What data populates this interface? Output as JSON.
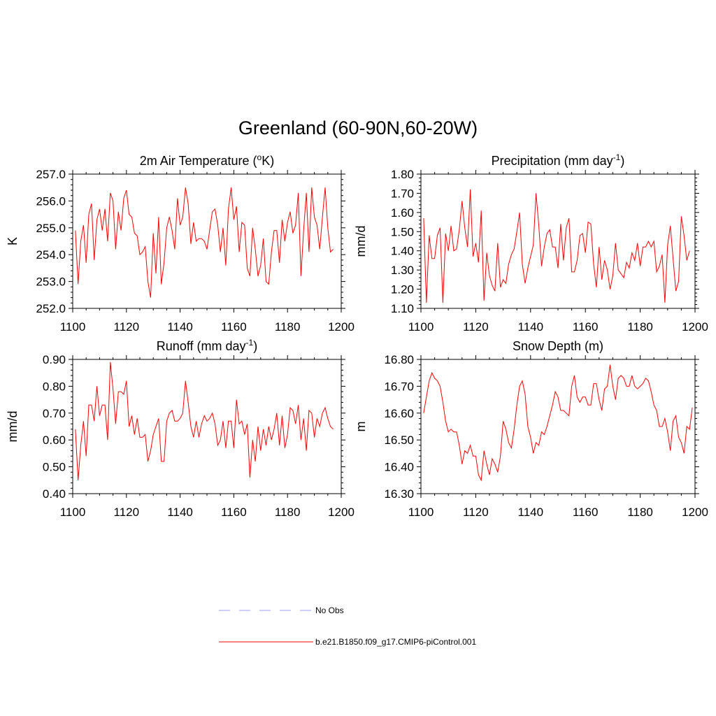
{
  "title": "Greenland (60-90N,60-20W)",
  "legend": {
    "obs_label": "No Obs",
    "obs_color": "#9999ff",
    "model_label": "b.e21.B1850.f09_g17.CMIP6-piControl.001",
    "model_color": "#ff0000"
  },
  "chart_data": [
    {
      "type": "line",
      "title": "2m Air Temperature (",
      "title_sup": "o",
      "title_suffix": "K)",
      "ylabel": "K",
      "xlim": [
        1100,
        1200
      ],
      "ylim": [
        252.0,
        257.0
      ],
      "xticks": [
        "1100",
        "1120",
        "1140",
        "1160",
        "1180",
        "1200"
      ],
      "yticks": [
        "252.0",
        "253.0",
        "254.0",
        "255.0",
        "256.0",
        "257.0"
      ],
      "x_start": 1101,
      "series": [
        {
          "name": "b.e21.B1850.f09_g17.CMIP6-piControl.001",
          "color": "#ff0000",
          "values": [
            254.9,
            252.9,
            254.5,
            255.1,
            253.7,
            255.5,
            255.9,
            253.8,
            255.3,
            255.7,
            254.9,
            255.7,
            254.5,
            256.3,
            256.0,
            254.2,
            255.6,
            254.9,
            256.1,
            256.4,
            255.5,
            255.4,
            254.8,
            254.7,
            254.0,
            254.1,
            254.3,
            253.0,
            252.4,
            254.8,
            253.3,
            255.4,
            252.9,
            253.7,
            255.0,
            255.4,
            254.9,
            254.2,
            256.1,
            255.1,
            255.4,
            256.5,
            255.9,
            254.4,
            255.2,
            254.5,
            254.6,
            254.6,
            254.5,
            254.2,
            254.9,
            255.6,
            255.7,
            255.1,
            254.1,
            255.0,
            253.6,
            255.7,
            256.5,
            255.3,
            255.8,
            254.1,
            255.2,
            255.1,
            253.5,
            253.2,
            255.0,
            254.2,
            253.2,
            253.6,
            254.6,
            253.0,
            252.9,
            254.1,
            254.9,
            254.9,
            253.7,
            255.3,
            254.5,
            255.2,
            255.6,
            254.8,
            255.1,
            256.3,
            253.2,
            254.9,
            256.3,
            254.1,
            256.5,
            255.4,
            255.1,
            254.2,
            255.4,
            256.5,
            255.0,
            254.1,
            254.2
          ]
        }
      ]
    },
    {
      "type": "line",
      "title": "Precipitation (mm day",
      "title_sup": "-1",
      "title_suffix": ")",
      "ylabel": "mm/d",
      "xlim": [
        1100,
        1200
      ],
      "ylim": [
        1.1,
        1.8
      ],
      "xticks": [
        "1100",
        "1120",
        "1140",
        "1160",
        "1180",
        "1200"
      ],
      "yticks": [
        "1.10",
        "1.20",
        "1.30",
        "1.40",
        "1.50",
        "1.60",
        "1.70",
        "1.80"
      ],
      "x_start": 1101,
      "series": [
        {
          "name": "b.e21.B1850.f09_g17.CMIP6-piControl.001",
          "color": "#ff0000",
          "values": [
            1.57,
            1.13,
            1.48,
            1.36,
            1.36,
            1.48,
            1.52,
            1.13,
            1.49,
            1.4,
            1.53,
            1.4,
            1.41,
            1.51,
            1.66,
            1.52,
            1.42,
            1.72,
            1.37,
            1.44,
            1.34,
            1.61,
            1.14,
            1.39,
            1.27,
            1.22,
            1.19,
            1.44,
            1.21,
            1.25,
            1.23,
            1.33,
            1.38,
            1.41,
            1.5,
            1.6,
            1.33,
            1.23,
            1.31,
            1.37,
            1.43,
            1.7,
            1.53,
            1.32,
            1.42,
            1.49,
            1.51,
            1.42,
            1.42,
            1.31,
            1.54,
            1.35,
            1.52,
            1.57,
            1.29,
            1.29,
            1.35,
            1.48,
            1.49,
            1.39,
            1.55,
            1.54,
            1.33,
            1.21,
            1.42,
            1.25,
            1.35,
            1.3,
            1.2,
            1.27,
            1.44,
            1.3,
            1.28,
            1.26,
            1.34,
            1.31,
            1.39,
            1.35,
            1.44,
            1.32,
            1.42,
            1.42,
            1.45,
            1.42,
            1.45,
            1.29,
            1.32,
            1.38,
            1.13,
            1.43,
            1.53,
            1.36,
            1.19,
            1.24,
            1.58,
            1.48,
            1.35,
            1.4
          ]
        }
      ]
    },
    {
      "type": "line",
      "title": "Runoff (mm day",
      "title_sup": "-1",
      "title_suffix": ")",
      "ylabel": "mm/d",
      "xlim": [
        1100,
        1200
      ],
      "ylim": [
        0.4,
        0.9
      ],
      "xticks": [
        "1100",
        "1120",
        "1140",
        "1160",
        "1180",
        "1200"
      ],
      "yticks": [
        "0.40",
        "0.50",
        "0.60",
        "0.70",
        "0.80",
        "0.90"
      ],
      "x_start": 1101,
      "series": [
        {
          "name": "b.e21.B1850.f09_g17.CMIP6-piControl.001",
          "color": "#ff0000",
          "values": [
            0.64,
            0.45,
            0.58,
            0.67,
            0.54,
            0.73,
            0.73,
            0.67,
            0.8,
            0.69,
            0.73,
            0.73,
            0.6,
            0.89,
            0.79,
            0.66,
            0.78,
            0.78,
            0.77,
            0.82,
            0.65,
            0.69,
            0.62,
            0.68,
            0.61,
            0.61,
            0.62,
            0.52,
            0.56,
            0.62,
            0.65,
            0.68,
            0.52,
            0.52,
            0.67,
            0.7,
            0.71,
            0.67,
            0.67,
            0.68,
            0.7,
            0.82,
            0.74,
            0.65,
            0.61,
            0.67,
            0.61,
            0.66,
            0.69,
            0.67,
            0.68,
            0.7,
            0.66,
            0.58,
            0.6,
            0.67,
            0.57,
            0.67,
            0.67,
            0.57,
            0.75,
            0.66,
            0.67,
            0.62,
            0.66,
            0.46,
            0.6,
            0.52,
            0.65,
            0.56,
            0.64,
            0.58,
            0.65,
            0.6,
            0.64,
            0.7,
            0.58,
            0.69,
            0.57,
            0.62,
            0.72,
            0.71,
            0.66,
            0.73,
            0.6,
            0.68,
            0.56,
            0.71,
            0.7,
            0.61,
            0.68,
            0.65,
            0.7,
            0.72,
            0.68,
            0.65,
            0.64
          ]
        }
      ]
    },
    {
      "type": "line",
      "title": "Snow Depth (m)",
      "title_sup": "",
      "title_suffix": "",
      "ylabel": "m",
      "xlim": [
        1100,
        1200
      ],
      "ylim": [
        16.3,
        16.8
      ],
      "xticks": [
        "1100",
        "1120",
        "1140",
        "1160",
        "1180",
        "1200"
      ],
      "yticks": [
        "16.30",
        "16.40",
        "16.50",
        "16.60",
        "16.70",
        "16.80"
      ],
      "x_start": 1101,
      "series": [
        {
          "name": "b.e21.B1850.f09_g17.CMIP6-piControl.001",
          "color": "#ff0000",
          "values": [
            16.6,
            16.66,
            16.72,
            16.75,
            16.73,
            16.72,
            16.7,
            16.64,
            16.57,
            16.53,
            16.54,
            16.53,
            16.53,
            16.48,
            16.41,
            16.46,
            16.45,
            16.48,
            16.44,
            16.44,
            16.37,
            16.35,
            16.46,
            16.41,
            16.37,
            16.43,
            16.41,
            16.38,
            16.44,
            16.57,
            16.54,
            16.49,
            16.47,
            16.54,
            16.63,
            16.7,
            16.72,
            16.67,
            16.55,
            16.51,
            16.45,
            16.49,
            16.48,
            16.53,
            16.52,
            16.55,
            16.59,
            16.63,
            16.68,
            16.66,
            16.61,
            16.61,
            16.6,
            16.59,
            16.7,
            16.74,
            16.66,
            16.64,
            16.66,
            16.66,
            16.63,
            16.63,
            16.71,
            16.71,
            16.65,
            16.61,
            16.69,
            16.7,
            16.78,
            16.7,
            16.65,
            16.73,
            16.74,
            16.73,
            16.7,
            16.7,
            16.74,
            16.7,
            16.69,
            16.7,
            16.71,
            16.73,
            16.72,
            16.68,
            16.63,
            16.61,
            16.55,
            16.55,
            16.58,
            16.53,
            16.46,
            16.57,
            16.59,
            16.51,
            16.49,
            16.45,
            16.55,
            16.54,
            16.62
          ]
        }
      ]
    }
  ]
}
